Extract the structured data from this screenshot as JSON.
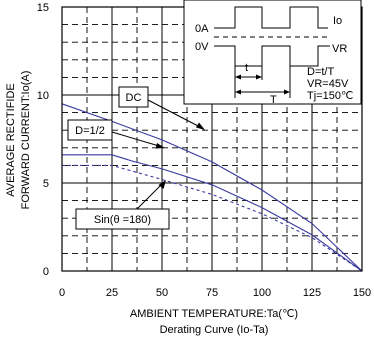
{
  "chart_data": {
    "type": "line",
    "title": "",
    "caption": "Derating Curve (Io-Ta)",
    "xlabel": "AMBIENT TEMPERATURE:Ta(℃)",
    "ylabel_line1": "AVERAGE RECTIFIDE",
    "ylabel_line2": "FORWARD CURRENT:Io(A)",
    "xlim": [
      0,
      150
    ],
    "ylim": [
      0,
      15
    ],
    "xticks": [
      0,
      25,
      50,
      75,
      100,
      125,
      150
    ],
    "yticks": [
      0,
      5,
      10,
      15
    ],
    "grid": true,
    "series": [
      {
        "name": "DC",
        "color": "#3a3aa0",
        "style": "solid",
        "x": [
          0,
          25,
          50,
          75,
          100,
          125,
          150
        ],
        "y": [
          9.5,
          8.5,
          7.45,
          6.2,
          4.6,
          2.7,
          0
        ]
      },
      {
        "name": "D=1/2",
        "color": "#3a3aa0",
        "style": "solid",
        "x": [
          0,
          25,
          35,
          50,
          75,
          100,
          125,
          150
        ],
        "y": [
          6.6,
          6.6,
          6.25,
          5.8,
          4.9,
          3.6,
          2.05,
          0
        ]
      },
      {
        "name": "Sin(θ =180)",
        "color": "#3a3aa0",
        "style": "dashed",
        "x": [
          0,
          25,
          50,
          75,
          100,
          125,
          150
        ],
        "y": [
          6.0,
          6.0,
          5.2,
          4.35,
          3.25,
          1.9,
          0
        ]
      }
    ],
    "inset": {
      "oa_label": "0A",
      "ov_label": "0V",
      "io_label": "Io",
      "vr_label": "VR",
      "t_label": "t",
      "T_label": "T",
      "d_formula": "D=t/T",
      "vr_value": "VR=45V",
      "tj_value": "Tj=150℃"
    }
  }
}
